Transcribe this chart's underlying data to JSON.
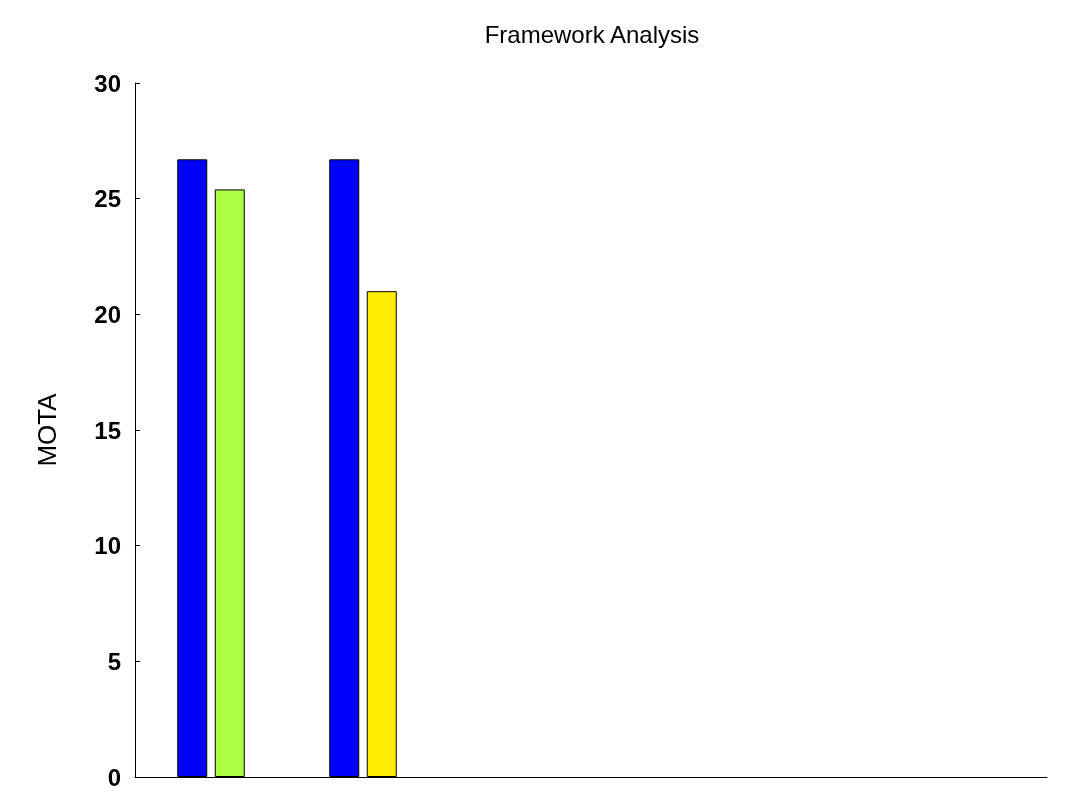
{
  "chart_data": {
    "type": "bar",
    "title": "Framework Analysis",
    "ylabel": "MOTA",
    "categories": [
      null,
      null,
      null,
      null,
      null,
      null
    ],
    "series": [
      {
        "colors": [
          "#0000ff",
          "#0000ff",
          null,
          null,
          null,
          null
        ],
        "values": [
          26.7,
          26.7,
          null,
          null,
          null,
          null
        ]
      },
      {
        "colors": [
          "#aaff44",
          "#ffee00",
          null,
          null,
          null,
          null
        ],
        "values": [
          25.4,
          21.0,
          null,
          null,
          null,
          null
        ]
      }
    ],
    "ylim": [
      0,
      30
    ],
    "yticks": [
      0,
      5,
      10,
      15,
      20,
      25,
      30
    ],
    "grid": false
  }
}
